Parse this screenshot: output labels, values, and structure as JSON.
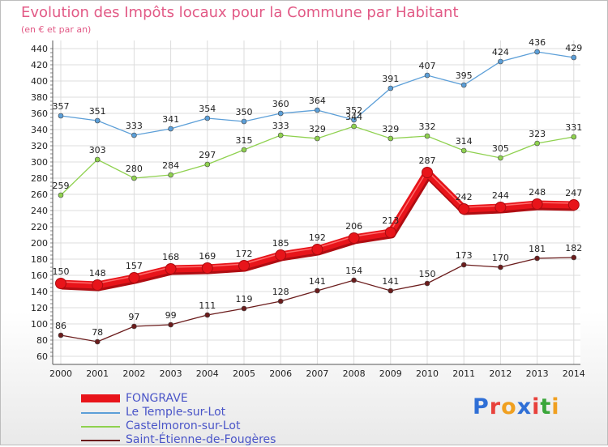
{
  "title": "Evolution des Impôts locaux pour la Commune par Habitant",
  "subtitle": "(en € et par an)",
  "logo": {
    "text": "Proxiti",
    "colors": [
      "#2f6fd6",
      "#e8413b",
      "#f0a020",
      "#2f6fd6",
      "#e8413b",
      "#3aa63a",
      "#f0a020"
    ]
  },
  "chart_data": {
    "type": "line",
    "title": "Evolution des Impôts locaux pour la Commune par Habitant",
    "subtitle": "(en € et par an)",
    "x": [
      "2000",
      "2001",
      "2002",
      "2003",
      "2004",
      "2005",
      "2006",
      "2007",
      "2008",
      "2009",
      "2010",
      "2011",
      "2012",
      "2013",
      "2014"
    ],
    "ylim": [
      60,
      440
    ],
    "yticks": [
      60,
      80,
      100,
      120,
      140,
      160,
      180,
      200,
      220,
      240,
      260,
      280,
      300,
      320,
      340,
      360,
      380,
      400,
      420,
      440
    ],
    "grid": true,
    "legend_position": "bottom-left",
    "series": [
      {
        "name": "FONGRAVE",
        "color": "#e8141a",
        "style": "thick",
        "values": [
          150,
          148,
          157,
          168,
          169,
          172,
          185,
          192,
          206,
          213,
          287,
          242,
          244,
          248,
          247
        ],
        "labels": [
          "150",
          "148",
          "157",
          "168",
          "169",
          "172",
          "185",
          "192",
          "206",
          "213",
          "287",
          "242",
          "244",
          "248",
          "247"
        ]
      },
      {
        "name": "Le Temple-sur-Lot",
        "color": "#5c9fd8",
        "style": "thin",
        "values": [
          357,
          351,
          333,
          341,
          354,
          350,
          360,
          364,
          352,
          391,
          407,
          395,
          424,
          436,
          429
        ],
        "labels": [
          "357",
          "351",
          "333",
          "341",
          "354",
          "350",
          "360",
          "364",
          "352",
          "391",
          "407",
          "395",
          "424",
          "436",
          "429"
        ]
      },
      {
        "name": "Castelmoron-sur-Lot",
        "color": "#8fd14f",
        "style": "thin",
        "values": [
          259,
          303,
          280,
          284,
          297,
          315,
          333,
          329,
          344,
          329,
          332,
          314,
          305,
          323,
          331
        ],
        "labels": [
          "259",
          "303",
          "280",
          "284",
          "297",
          "315",
          "333",
          "329",
          "344",
          "329",
          "332",
          "314",
          "305",
          "323",
          "331"
        ]
      },
      {
        "name": "Saint-Étienne-de-Fougères",
        "color": "#6b1c1c",
        "style": "thin",
        "values": [
          86,
          78,
          97,
          99,
          111,
          119,
          128,
          141,
          154,
          141,
          150,
          173,
          170,
          181,
          182
        ],
        "labels": [
          "86",
          "78",
          "97",
          "99",
          "111",
          "119",
          "128",
          "141",
          "154",
          "141",
          "150",
          "173",
          "170",
          "181",
          "182"
        ]
      }
    ]
  }
}
